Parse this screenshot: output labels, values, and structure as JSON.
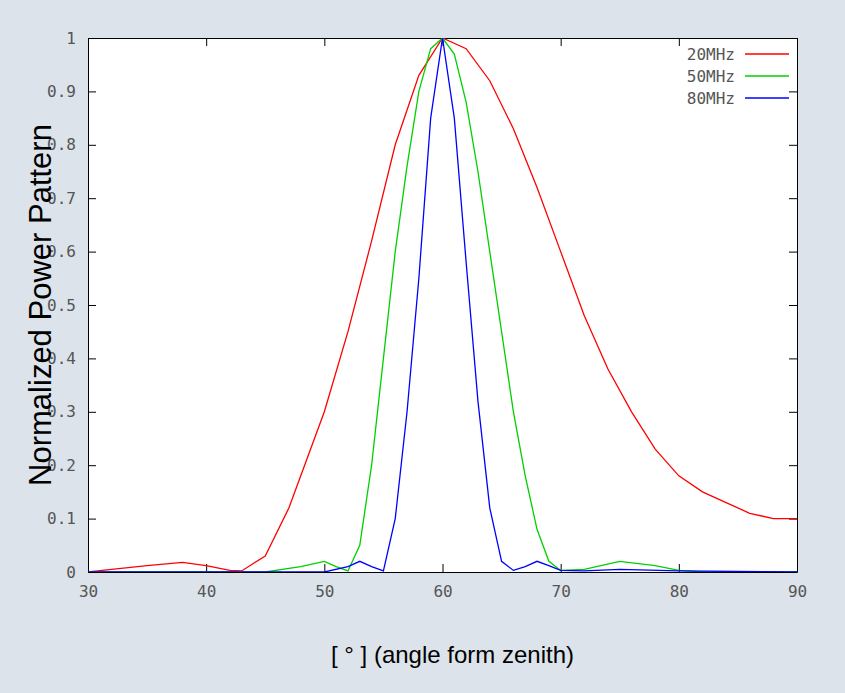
{
  "chart_data": {
    "type": "line",
    "x_label": "[ ° ] (angle form zenith)",
    "y_label": "Normalized Power Pattern",
    "xlim": [
      30,
      90
    ],
    "xticks": [
      30,
      40,
      50,
      60,
      70,
      80,
      90
    ],
    "ylim": [
      0,
      1
    ],
    "yticks": [
      0,
      0.1,
      0.2,
      0.3,
      0.4,
      0.5,
      0.6,
      0.7,
      0.8,
      0.9,
      1
    ],
    "legend": "upper right",
    "series": [
      {
        "name": "20MHz",
        "color": "#ff0000",
        "x": [
          30,
          32,
          35,
          38,
          40,
          42,
          43,
          45,
          47,
          50,
          52,
          54,
          56,
          58,
          60,
          62,
          64,
          66,
          68,
          70,
          72,
          74,
          76,
          78,
          80,
          82,
          84,
          86,
          88,
          90
        ],
        "values": [
          0,
          0.005,
          0.012,
          0.018,
          0.012,
          0.003,
          0.002,
          0.03,
          0.12,
          0.3,
          0.45,
          0.62,
          0.8,
          0.93,
          1.0,
          0.98,
          0.92,
          0.83,
          0.72,
          0.6,
          0.48,
          0.38,
          0.3,
          0.23,
          0.18,
          0.15,
          0.13,
          0.11,
          0.1,
          0.1
        ]
      },
      {
        "name": "50MHz",
        "color": "#00d000",
        "x": [
          30,
          45,
          48,
          50,
          51,
          52,
          53,
          54,
          55,
          56,
          57,
          58,
          59,
          60,
          61,
          62,
          63,
          64,
          65,
          66,
          67,
          68,
          69,
          70,
          72,
          75,
          78,
          80,
          82,
          90
        ],
        "values": [
          0,
          0,
          0.01,
          0.02,
          0.01,
          0.002,
          0.05,
          0.2,
          0.4,
          0.6,
          0.76,
          0.9,
          0.98,
          1.0,
          0.97,
          0.88,
          0.75,
          0.6,
          0.45,
          0.3,
          0.18,
          0.08,
          0.02,
          0.003,
          0.005,
          0.02,
          0.012,
          0.003,
          0,
          0
        ]
      },
      {
        "name": "80MHz",
        "color": "#0000ff",
        "x": [
          30,
          50,
          52,
          53,
          54,
          55,
          56,
          57,
          58,
          59,
          60,
          61,
          62,
          63,
          64,
          65,
          66,
          67,
          68,
          69,
          70,
          72,
          75,
          80,
          90
        ],
        "values": [
          0,
          0,
          0.01,
          0.02,
          0.01,
          0.002,
          0.1,
          0.3,
          0.55,
          0.85,
          1.0,
          0.85,
          0.58,
          0.32,
          0.12,
          0.02,
          0.003,
          0.01,
          0.02,
          0.012,
          0.003,
          0.002,
          0.005,
          0.002,
          0
        ]
      }
    ]
  }
}
